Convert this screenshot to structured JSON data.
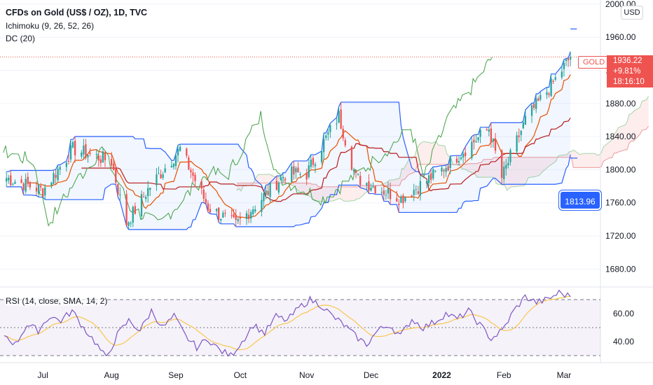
{
  "legend": {
    "symbol": "CFDs on Gold (US$ / OZ), 1D, TVC",
    "ichimoku": "Ichimoku (9, 26, 52, 26)",
    "dc": "DC (20)",
    "rsi": "RSI (14, close, SMA, 14, 2)"
  },
  "currency_button": "USD",
  "price_panel": {
    "symbol_tag": "GOLD",
    "last_price": "1936.22",
    "change": "+9.81%",
    "countdown": "18:16:10"
  },
  "donchian_tag": "1813.96",
  "colors": {
    "up": "#26a69a",
    "down": "#ef5350",
    "donchian": "#2962ff",
    "tenkan": "#e65100",
    "kijun": "#b71c1c",
    "chikou": "#43a047",
    "rsi": "#7e57c2",
    "rsi_ma": "#f9c74f"
  },
  "chart_data": [
    {
      "type": "candlestick",
      "title": "CFDs on Gold (US$ / OZ), 1D, TVC",
      "x_tick_labels": [
        "Jul",
        "Aug",
        "Sep",
        "Oct",
        "Nov",
        "Dec",
        "2022",
        "Feb",
        "Mar"
      ],
      "y_tick_labels": [
        "1680.00",
        "1720.00",
        "1760.00",
        "1800.00",
        "1840.00",
        "1880.00",
        "1920.00",
        "1960.00",
        "2000.00"
      ],
      "ylim": [
        1660,
        2005
      ],
      "x_range": [
        "2021-06-11",
        "2022-03-18"
      ],
      "price_line": 1936.22,
      "series": [
        {
          "name": "Gold",
          "dates": [
            "2021-06-14",
            "2021-07-01",
            "2021-07-15",
            "2021-08-02",
            "2021-08-06",
            "2021-08-09",
            "2021-08-20",
            "2021-09-03",
            "2021-09-16",
            "2021-09-29",
            "2021-10-22",
            "2021-11-01",
            "2021-11-05",
            "2021-11-16",
            "2021-11-24",
            "2021-12-15",
            "2022-01-03",
            "2022-01-25",
            "2022-01-31",
            "2022-02-11",
            "2022-02-24",
            "2022-03-04"
          ],
          "close": [
            1790,
            1775,
            1825,
            1810,
            1765,
            1735,
            1780,
            1825,
            1755,
            1733,
            1795,
            1795,
            1815,
            1865,
            1790,
            1765,
            1800,
            1850,
            1790,
            1860,
            1905,
            1936
          ]
        }
      ],
      "donchian_upper_end": 1970,
      "donchian_lower_end": 1814
    },
    {
      "type": "line",
      "title": "RSI (14, close, SMA, 14, 2)",
      "y_tick_labels": [
        "40.00",
        "60.00"
      ],
      "ylim": [
        25,
        78
      ],
      "bands": [
        30,
        50,
        70
      ],
      "series": [
        {
          "name": "RSI",
          "values": [
            45,
            38,
            52,
            48,
            58,
            55,
            62,
            50,
            40,
            28,
            45,
            55,
            48,
            62,
            50,
            58,
            44,
            36,
            42,
            34,
            30,
            40,
            52,
            46,
            58,
            55,
            64,
            70,
            66,
            58,
            52,
            44,
            38,
            48,
            52,
            44,
            56,
            50,
            54,
            60,
            56,
            62,
            52,
            42,
            48,
            62,
            72,
            68,
            70,
            75,
            72
          ]
        }
      ]
    }
  ]
}
